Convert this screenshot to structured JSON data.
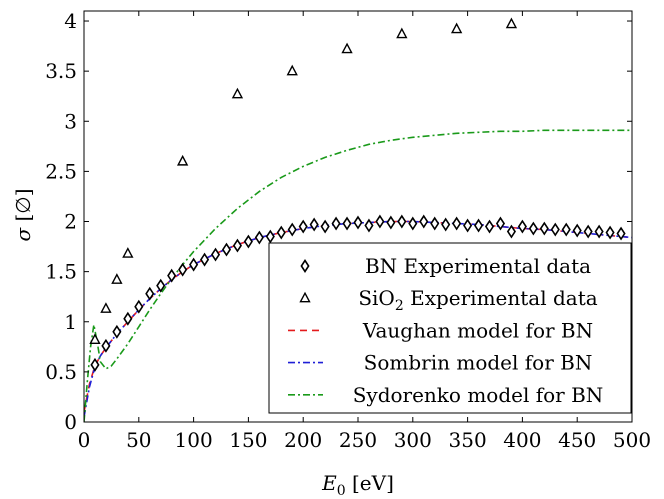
{
  "chart_data": {
    "type": "line",
    "title": "",
    "xlabel": {
      "main": "E",
      "sub": "0",
      "rest": " [eV]"
    },
    "ylabel": {
      "main": "σ",
      "rest": " [∅]"
    },
    "xlim": [
      0,
      500
    ],
    "ylim": [
      0,
      4.1
    ],
    "x_ticks": [
      0,
      50,
      100,
      150,
      200,
      250,
      300,
      350,
      400,
      450,
      500
    ],
    "x_tick_labels": [
      "0",
      "50",
      "100",
      "150",
      "200",
      "250",
      "300",
      "350",
      "400",
      "450",
      "500"
    ],
    "y_ticks": [
      0,
      0.5,
      1,
      1.5,
      2,
      2.5,
      3,
      3.5,
      4
    ],
    "y_tick_labels": [
      "0",
      "0.5",
      "1",
      "1.5",
      "2",
      "2.5",
      "3",
      "3.5",
      "4"
    ],
    "grid": false,
    "legend_position": "bottom-right",
    "series": [
      {
        "name": "BN Experimental data",
        "kind": "scatter",
        "marker": "diamond",
        "color": "#000000",
        "x": [
          10,
          20,
          30,
          40,
          50,
          60,
          70,
          80,
          90,
          100,
          110,
          120,
          130,
          140,
          150,
          160,
          170,
          180,
          190,
          200,
          210,
          220,
          230,
          240,
          250,
          260,
          270,
          280,
          290,
          300,
          310,
          320,
          330,
          340,
          350,
          360,
          370,
          380,
          390,
          400,
          410,
          420,
          430,
          440,
          450,
          460,
          470,
          480,
          490
        ],
        "y": [
          0.57,
          0.76,
          0.9,
          1.03,
          1.15,
          1.28,
          1.36,
          1.46,
          1.52,
          1.57,
          1.62,
          1.67,
          1.72,
          1.76,
          1.8,
          1.84,
          1.85,
          1.89,
          1.92,
          1.95,
          1.97,
          1.95,
          1.98,
          1.98,
          1.99,
          1.96,
          2.0,
          1.99,
          2.0,
          1.98,
          2.0,
          1.98,
          1.97,
          1.98,
          1.96,
          1.96,
          1.95,
          1.98,
          1.9,
          1.95,
          1.93,
          1.93,
          1.92,
          1.92,
          1.91,
          1.9,
          1.9,
          1.89,
          1.88
        ]
      },
      {
        "name": "SiO₂ Experimental data",
        "name_parts": {
          "main": "SiO",
          "sub": "2",
          "rest": " Experimental data"
        },
        "kind": "scatter",
        "marker": "triangle",
        "color": "#000000",
        "x": [
          10,
          20,
          30,
          40,
          90,
          140,
          190,
          240,
          290,
          340,
          390
        ],
        "y": [
          0.82,
          1.13,
          1.42,
          1.68,
          2.6,
          3.27,
          3.5,
          3.72,
          3.87,
          3.92,
          3.97
        ]
      },
      {
        "name": "Vaughan model for BN",
        "kind": "line",
        "dash": "dashed",
        "color": "#e41a1c",
        "x": [
          0,
          5,
          10,
          15,
          20,
          30,
          40,
          50,
          60,
          70,
          80,
          90,
          100,
          120,
          140,
          160,
          180,
          200,
          220,
          240,
          260,
          280,
          300,
          320,
          340,
          360,
          380,
          400,
          420,
          440,
          460,
          480,
          500
        ],
        "y": [
          0.1,
          0.38,
          0.56,
          0.66,
          0.74,
          0.88,
          1.0,
          1.12,
          1.23,
          1.33,
          1.42,
          1.5,
          1.57,
          1.68,
          1.77,
          1.84,
          1.89,
          1.93,
          1.96,
          1.98,
          1.99,
          2.0,
          2.0,
          1.99,
          1.98,
          1.97,
          1.95,
          1.93,
          1.92,
          1.9,
          1.88,
          1.86,
          1.84
        ]
      },
      {
        "name": "Sombrin model for BN",
        "kind": "line",
        "dash": "dashdot",
        "color": "#1f1fd6",
        "x": [
          0,
          5,
          10,
          15,
          20,
          30,
          40,
          50,
          60,
          70,
          80,
          90,
          100,
          120,
          140,
          160,
          180,
          200,
          220,
          240,
          260,
          280,
          300,
          320,
          340,
          360,
          380,
          400,
          420,
          440,
          460,
          480,
          500
        ],
        "y": [
          0.05,
          0.35,
          0.55,
          0.66,
          0.74,
          0.88,
          1.0,
          1.12,
          1.23,
          1.33,
          1.42,
          1.5,
          1.57,
          1.68,
          1.77,
          1.84,
          1.89,
          1.93,
          1.96,
          1.98,
          1.99,
          2.0,
          2.0,
          1.99,
          1.98,
          1.97,
          1.95,
          1.93,
          1.92,
          1.9,
          1.88,
          1.86,
          1.84
        ]
      },
      {
        "name": "Sydorenko model for BN",
        "kind": "line",
        "dash": "dashdot",
        "color": "#1a9a1a",
        "x": [
          0,
          3,
          6,
          9,
          12,
          15,
          20,
          25,
          30,
          40,
          50,
          60,
          70,
          80,
          90,
          100,
          120,
          140,
          160,
          180,
          200,
          220,
          240,
          260,
          280,
          300,
          320,
          340,
          360,
          380,
          400,
          420,
          440,
          460,
          480,
          500
        ],
        "y": [
          0.0,
          0.4,
          0.75,
          0.97,
          0.8,
          0.6,
          0.53,
          0.56,
          0.63,
          0.78,
          0.95,
          1.12,
          1.28,
          1.43,
          1.57,
          1.7,
          1.93,
          2.13,
          2.3,
          2.44,
          2.55,
          2.64,
          2.71,
          2.77,
          2.81,
          2.84,
          2.86,
          2.88,
          2.89,
          2.9,
          2.9,
          2.91,
          2.91,
          2.91,
          2.91,
          2.91
        ]
      }
    ]
  }
}
